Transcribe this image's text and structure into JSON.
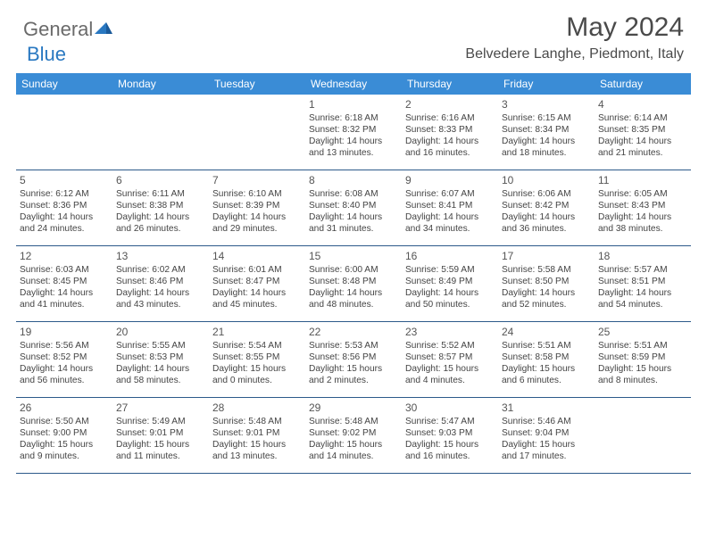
{
  "brand": {
    "name_gray": "General",
    "name_blue": "Blue"
  },
  "title": "May 2024",
  "location": "Belvedere Langhe, Piedmont, Italy",
  "header_bg": "#3a8cd6",
  "border_color": "#2d5a8a",
  "day_names": [
    "Sunday",
    "Monday",
    "Tuesday",
    "Wednesday",
    "Thursday",
    "Friday",
    "Saturday"
  ],
  "weeks": [
    [
      null,
      null,
      null,
      {
        "n": "1",
        "sr": "6:18 AM",
        "ss": "8:32 PM",
        "dl": "14 hours and 13 minutes."
      },
      {
        "n": "2",
        "sr": "6:16 AM",
        "ss": "8:33 PM",
        "dl": "14 hours and 16 minutes."
      },
      {
        "n": "3",
        "sr": "6:15 AM",
        "ss": "8:34 PM",
        "dl": "14 hours and 18 minutes."
      },
      {
        "n": "4",
        "sr": "6:14 AM",
        "ss": "8:35 PM",
        "dl": "14 hours and 21 minutes."
      }
    ],
    [
      {
        "n": "5",
        "sr": "6:12 AM",
        "ss": "8:36 PM",
        "dl": "14 hours and 24 minutes."
      },
      {
        "n": "6",
        "sr": "6:11 AM",
        "ss": "8:38 PM",
        "dl": "14 hours and 26 minutes."
      },
      {
        "n": "7",
        "sr": "6:10 AM",
        "ss": "8:39 PM",
        "dl": "14 hours and 29 minutes."
      },
      {
        "n": "8",
        "sr": "6:08 AM",
        "ss": "8:40 PM",
        "dl": "14 hours and 31 minutes."
      },
      {
        "n": "9",
        "sr": "6:07 AM",
        "ss": "8:41 PM",
        "dl": "14 hours and 34 minutes."
      },
      {
        "n": "10",
        "sr": "6:06 AM",
        "ss": "8:42 PM",
        "dl": "14 hours and 36 minutes."
      },
      {
        "n": "11",
        "sr": "6:05 AM",
        "ss": "8:43 PM",
        "dl": "14 hours and 38 minutes."
      }
    ],
    [
      {
        "n": "12",
        "sr": "6:03 AM",
        "ss": "8:45 PM",
        "dl": "14 hours and 41 minutes."
      },
      {
        "n": "13",
        "sr": "6:02 AM",
        "ss": "8:46 PM",
        "dl": "14 hours and 43 minutes."
      },
      {
        "n": "14",
        "sr": "6:01 AM",
        "ss": "8:47 PM",
        "dl": "14 hours and 45 minutes."
      },
      {
        "n": "15",
        "sr": "6:00 AM",
        "ss": "8:48 PM",
        "dl": "14 hours and 48 minutes."
      },
      {
        "n": "16",
        "sr": "5:59 AM",
        "ss": "8:49 PM",
        "dl": "14 hours and 50 minutes."
      },
      {
        "n": "17",
        "sr": "5:58 AM",
        "ss": "8:50 PM",
        "dl": "14 hours and 52 minutes."
      },
      {
        "n": "18",
        "sr": "5:57 AM",
        "ss": "8:51 PM",
        "dl": "14 hours and 54 minutes."
      }
    ],
    [
      {
        "n": "19",
        "sr": "5:56 AM",
        "ss": "8:52 PM",
        "dl": "14 hours and 56 minutes."
      },
      {
        "n": "20",
        "sr": "5:55 AM",
        "ss": "8:53 PM",
        "dl": "14 hours and 58 minutes."
      },
      {
        "n": "21",
        "sr": "5:54 AM",
        "ss": "8:55 PM",
        "dl": "15 hours and 0 minutes."
      },
      {
        "n": "22",
        "sr": "5:53 AM",
        "ss": "8:56 PM",
        "dl": "15 hours and 2 minutes."
      },
      {
        "n": "23",
        "sr": "5:52 AM",
        "ss": "8:57 PM",
        "dl": "15 hours and 4 minutes."
      },
      {
        "n": "24",
        "sr": "5:51 AM",
        "ss": "8:58 PM",
        "dl": "15 hours and 6 minutes."
      },
      {
        "n": "25",
        "sr": "5:51 AM",
        "ss": "8:59 PM",
        "dl": "15 hours and 8 minutes."
      }
    ],
    [
      {
        "n": "26",
        "sr": "5:50 AM",
        "ss": "9:00 PM",
        "dl": "15 hours and 9 minutes."
      },
      {
        "n": "27",
        "sr": "5:49 AM",
        "ss": "9:01 PM",
        "dl": "15 hours and 11 minutes."
      },
      {
        "n": "28",
        "sr": "5:48 AM",
        "ss": "9:01 PM",
        "dl": "15 hours and 13 minutes."
      },
      {
        "n": "29",
        "sr": "5:48 AM",
        "ss": "9:02 PM",
        "dl": "15 hours and 14 minutes."
      },
      {
        "n": "30",
        "sr": "5:47 AM",
        "ss": "9:03 PM",
        "dl": "15 hours and 16 minutes."
      },
      {
        "n": "31",
        "sr": "5:46 AM",
        "ss": "9:04 PM",
        "dl": "15 hours and 17 minutes."
      },
      null
    ]
  ],
  "labels": {
    "sunrise": "Sunrise:",
    "sunset": "Sunset:",
    "daylight": "Daylight:"
  }
}
